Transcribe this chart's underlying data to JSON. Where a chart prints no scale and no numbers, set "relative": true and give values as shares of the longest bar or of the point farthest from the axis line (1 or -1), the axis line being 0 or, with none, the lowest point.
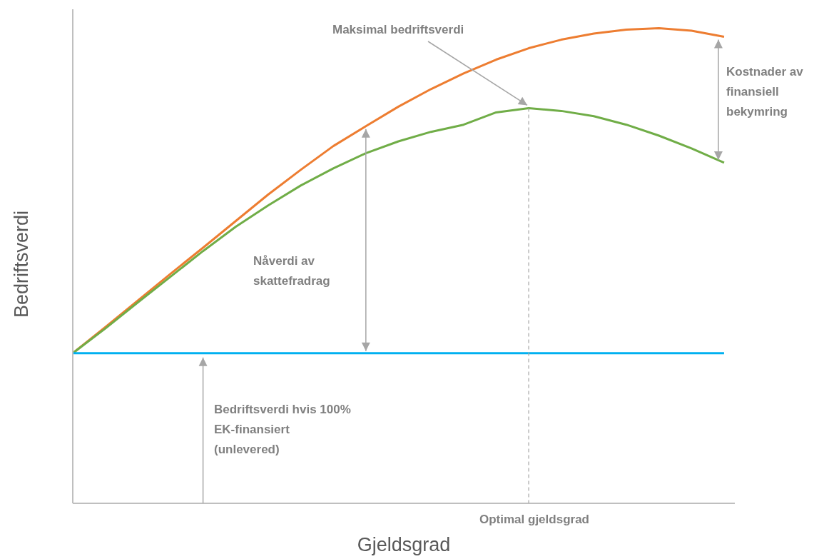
{
  "chart_data": {
    "type": "line",
    "relative": true,
    "xlabel": "Gjeldsgrad",
    "ylabel": "Bedriftsverdi",
    "categories": [
      null,
      null,
      null,
      null,
      null,
      null,
      null,
      null,
      null,
      null,
      null,
      null,
      null,
      null,
      null,
      null,
      null,
      null,
      null,
      null,
      null
    ],
    "series": [
      {
        "color": "#ed7d31",
        "values": [
          0.316,
          0.371,
          0.427,
          0.483,
          0.538,
          0.594,
          0.65,
          0.702,
          0.752,
          0.794,
          0.835,
          0.872,
          0.905,
          0.934,
          0.958,
          0.976,
          0.989,
          0.997,
          1.0,
          0.995,
          0.982
        ]
      },
      {
        "color": "#70ad47",
        "values": [
          0.316,
          0.368,
          0.423,
          0.477,
          0.531,
          0.582,
          0.627,
          0.669,
          0.705,
          0.737,
          0.762,
          0.782,
          0.797,
          0.823,
          0.832,
          0.826,
          0.815,
          0.797,
          0.774,
          0.747,
          0.717
        ]
      },
      {
        "color": "#00b0f0",
        "values": [
          0.316,
          0.316,
          0.316,
          0.316,
          0.316,
          0.316,
          0.316,
          0.316,
          0.316,
          0.316,
          0.316,
          0.316,
          0.316,
          0.316,
          0.316,
          0.316,
          0.316,
          0.316,
          0.316,
          0.316,
          0.316
        ]
      }
    ],
    "annotations": [
      "Maksimal bedriftsverdi",
      "Kostnader av finansiell bekymring",
      "Nåverdi av skattefradrag",
      "Bedriftsverdi hvis 100% EK-finansiert (unlevered)",
      "Optimal gjeldsgrad"
    ],
    "grid": false,
    "legend": false,
    "marker": "none",
    "line_style": "solid"
  }
}
